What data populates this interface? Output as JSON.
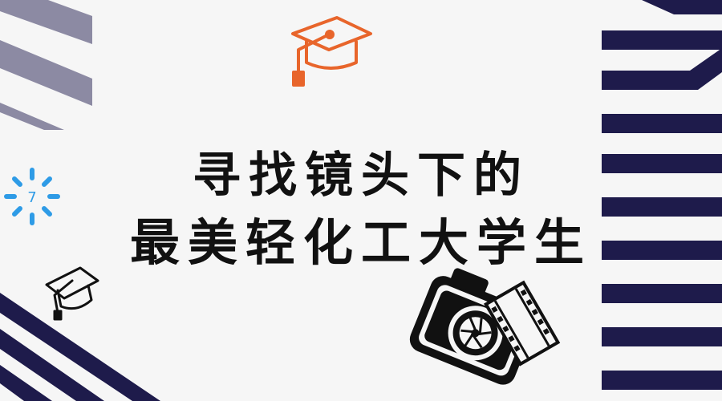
{
  "poster": {
    "title_line_1": "寻找镜头下的",
    "title_line_2": "最美轻化工大学生",
    "badge_number": "7"
  },
  "colors": {
    "background": "#f6f6f6",
    "navy": "#1e1b4b",
    "gray_stripe": "#8c8aa3",
    "orange": "#e8652b",
    "blue": "#2e9be6",
    "text": "#111111"
  },
  "icons": [
    "graduation-cap-icon",
    "sparkle-icon",
    "camera-icon",
    "film-strip-icon"
  ]
}
